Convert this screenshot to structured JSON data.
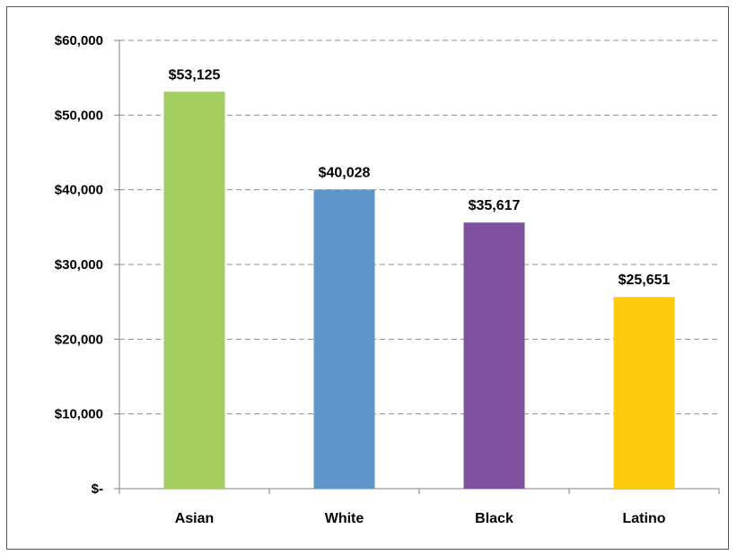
{
  "chart_data": {
    "type": "bar",
    "title": "",
    "xlabel": "",
    "ylabel": "",
    "categories": [
      "Asian",
      "White",
      "Black",
      "Latino"
    ],
    "values": [
      53125,
      40028,
      35617,
      25651
    ],
    "data_labels": [
      "$53,125",
      "$40,028",
      "$35,617",
      "$25,651"
    ],
    "colors": [
      "#a3cd5f",
      "#5f96c9",
      "#7e509e",
      "#ffc90e"
    ],
    "ylim": [
      0,
      60000
    ],
    "yticks": [
      0,
      10000,
      20000,
      30000,
      40000,
      50000,
      60000
    ],
    "ytick_labels": [
      "$-",
      "$10,000",
      "$20,000",
      "$30,000",
      "$40,000",
      "$50,000",
      "$60,000"
    ],
    "grid": true,
    "grid_style": "dashed",
    "legend": "none"
  }
}
